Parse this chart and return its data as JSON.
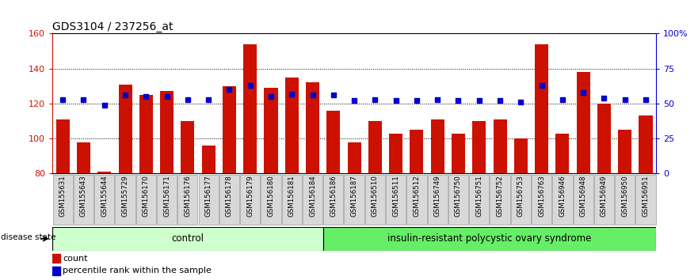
{
  "title": "GDS3104 / 237256_at",
  "samples": [
    "GSM155631",
    "GSM155643",
    "GSM155644",
    "GSM155729",
    "GSM156170",
    "GSM156171",
    "GSM156176",
    "GSM156177",
    "GSM156178",
    "GSM156179",
    "GSM156180",
    "GSM156181",
    "GSM156184",
    "GSM156186",
    "GSM156187",
    "GSM156510",
    "GSM156511",
    "GSM156512",
    "GSM156749",
    "GSM156750",
    "GSM156751",
    "GSM156752",
    "GSM156753",
    "GSM156763",
    "GSM156946",
    "GSM156948",
    "GSM156949",
    "GSM156950",
    "GSM156951"
  ],
  "bar_values": [
    111,
    98,
    81,
    131,
    125,
    127,
    110,
    96,
    130,
    154,
    129,
    135,
    132,
    116,
    98,
    110,
    103,
    105,
    111,
    103,
    110,
    111,
    100,
    154,
    103,
    138,
    120,
    105,
    113
  ],
  "percentile_values": [
    53,
    53,
    49,
    56,
    55,
    55,
    53,
    53,
    60,
    63,
    55,
    57,
    56,
    56,
    52,
    53,
    52,
    52,
    53,
    52,
    52,
    52,
    51,
    63,
    53,
    58,
    54,
    53,
    53
  ],
  "control_count": 13,
  "disease_count": 16,
  "bar_color": "#cc1100",
  "dot_color": "#0000cc",
  "y_min": 80,
  "y_max": 160,
  "y_ticks_left": [
    80,
    100,
    120,
    140,
    160
  ],
  "y2_ticks": [
    0,
    25,
    50,
    75,
    100
  ],
  "y2_labels": [
    "0",
    "25",
    "50",
    "75",
    "100%"
  ],
  "control_label": "control",
  "disease_label": "insulin-resistant polycystic ovary syndrome",
  "disease_state_label": "disease state",
  "legend_bar": "count",
  "legend_dot": "percentile rank within the sample",
  "control_bg": "#ccffcc",
  "disease_bg": "#66ee66",
  "bar_width": 0.65
}
